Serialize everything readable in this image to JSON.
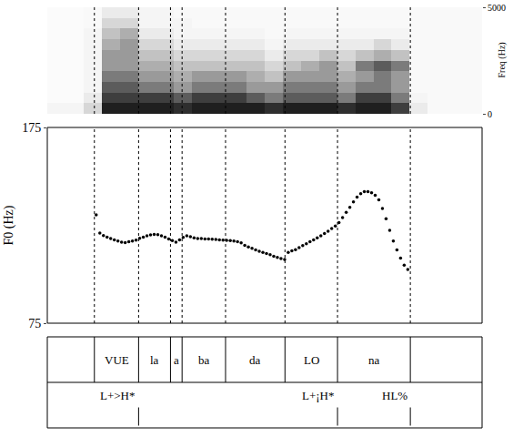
{
  "chart_data": [
    {
      "type": "heatmap",
      "ylabel": "Freq (Hz)",
      "xlim": [
        0,
        1.2
      ],
      "ylim": [
        0,
        5000
      ],
      "yticks": [
        0,
        5000
      ],
      "tick_labels": "y",
      "grid": false,
      "x": [
        0.025,
        0.075,
        0.125,
        0.175,
        0.225,
        0.275,
        0.325,
        0.375,
        0.425,
        0.475,
        0.525,
        0.575,
        0.625,
        0.675,
        0.725,
        0.775,
        0.825,
        0.875,
        0.925,
        0.975,
        1.025,
        1.075,
        1.125,
        1.175
      ],
      "y": [
        250,
        750,
        1250,
        1750,
        2250,
        2750,
        3250,
        3750,
        4250,
        4750
      ],
      "zlim": [
        0,
        1
      ],
      "columns": [
        [
          0.05,
          0.02,
          0.02,
          0.02,
          0.02,
          0.02,
          0.02,
          0.02,
          0.02,
          0.02
        ],
        [
          0.05,
          0.02,
          0.02,
          0.02,
          0.02,
          0.02,
          0.02,
          0.02,
          0.02,
          0.02
        ],
        [
          0.2,
          0.1,
          0.05,
          0.05,
          0.05,
          0.05,
          0.05,
          0.05,
          0.03,
          0.03
        ],
        [
          0.9,
          0.8,
          0.7,
          0.6,
          0.5,
          0.5,
          0.4,
          0.3,
          0.2,
          0.1
        ],
        [
          0.9,
          0.8,
          0.7,
          0.6,
          0.5,
          0.5,
          0.5,
          0.4,
          0.2,
          0.1
        ],
        [
          0.9,
          0.8,
          0.6,
          0.5,
          0.4,
          0.3,
          0.2,
          0.1,
          0.05,
          0.05
        ],
        [
          0.9,
          0.8,
          0.6,
          0.5,
          0.4,
          0.3,
          0.2,
          0.1,
          0.05,
          0.05
        ],
        [
          0.85,
          0.7,
          0.5,
          0.4,
          0.3,
          0.2,
          0.1,
          0.05,
          0.05,
          0.03
        ],
        [
          0.9,
          0.8,
          0.6,
          0.5,
          0.3,
          0.2,
          0.1,
          0.05,
          0.03,
          0.03
        ],
        [
          0.9,
          0.8,
          0.6,
          0.5,
          0.3,
          0.2,
          0.1,
          0.05,
          0.03,
          0.03
        ],
        [
          0.9,
          0.8,
          0.6,
          0.5,
          0.3,
          0.2,
          0.1,
          0.05,
          0.03,
          0.03
        ],
        [
          0.9,
          0.7,
          0.5,
          0.4,
          0.3,
          0.2,
          0.1,
          0.05,
          0.03,
          0.03
        ],
        [
          0.85,
          0.6,
          0.5,
          0.3,
          0.2,
          0.1,
          0.05,
          0.03,
          0.03,
          0.03
        ],
        [
          0.9,
          0.7,
          0.6,
          0.5,
          0.3,
          0.2,
          0.1,
          0.05,
          0.03,
          0.03
        ],
        [
          0.9,
          0.7,
          0.6,
          0.5,
          0.4,
          0.2,
          0.1,
          0.05,
          0.03,
          0.03
        ],
        [
          0.9,
          0.7,
          0.6,
          0.5,
          0.5,
          0.3,
          0.1,
          0.05,
          0.03,
          0.03
        ],
        [
          0.85,
          0.6,
          0.5,
          0.4,
          0.3,
          0.2,
          0.1,
          0.05,
          0.03,
          0.03
        ],
        [
          0.9,
          0.8,
          0.6,
          0.5,
          0.6,
          0.3,
          0.1,
          0.05,
          0.03,
          0.03
        ],
        [
          0.9,
          0.8,
          0.6,
          0.6,
          0.7,
          0.4,
          0.2,
          0.05,
          0.03,
          0.03
        ],
        [
          0.8,
          0.6,
          0.5,
          0.5,
          0.6,
          0.3,
          0.1,
          0.05,
          0.03,
          0.03
        ],
        [
          0.1,
          0.05,
          0.03,
          0.03,
          0.03,
          0.03,
          0.03,
          0.03,
          0.03,
          0.03
        ],
        [
          0.03,
          0.03,
          0.03,
          0.03,
          0.03,
          0.03,
          0.03,
          0.03,
          0.03,
          0.03
        ],
        [
          0.03,
          0.03,
          0.03,
          0.03,
          0.03,
          0.03,
          0.03,
          0.03,
          0.03,
          0.03
        ],
        [
          0.03,
          0.03,
          0.03,
          0.03,
          0.03,
          0.03,
          0.03,
          0.03,
          0.03,
          0.03
        ]
      ]
    },
    {
      "type": "scatter",
      "ylabel": "F0 (Hz)",
      "xlim": [
        0,
        1.2
      ],
      "ylim": [
        75,
        175
      ],
      "yticks": [
        75,
        175
      ],
      "tick_labels": "y",
      "grid": false,
      "marker": "circle",
      "color": "#000000",
      "x": [
        0.135,
        0.145,
        0.155,
        0.165,
        0.175,
        0.185,
        0.195,
        0.205,
        0.215,
        0.225,
        0.235,
        0.245,
        0.255,
        0.265,
        0.275,
        0.285,
        0.295,
        0.305,
        0.315,
        0.325,
        0.335,
        0.345,
        0.355,
        0.365,
        0.375,
        0.385,
        0.395,
        0.405,
        0.415,
        0.425,
        0.435,
        0.445,
        0.455,
        0.465,
        0.475,
        0.485,
        0.495,
        0.505,
        0.515,
        0.525,
        0.535,
        0.545,
        0.555,
        0.565,
        0.575,
        0.585,
        0.595,
        0.605,
        0.615,
        0.625,
        0.635,
        0.645,
        0.655,
        0.665,
        0.675,
        0.685,
        0.695,
        0.705,
        0.715,
        0.725,
        0.735,
        0.745,
        0.755,
        0.765,
        0.775,
        0.785,
        0.795,
        0.805,
        0.815,
        0.825,
        0.835,
        0.845,
        0.855,
        0.865,
        0.875,
        0.885,
        0.895,
        0.905,
        0.915,
        0.925,
        0.935,
        0.945,
        0.955,
        0.965,
        0.975,
        0.985,
        0.995
      ],
      "values": [
        130.3,
        121,
        119.8,
        119,
        118.2,
        117.6,
        117,
        116.4,
        116.2,
        116.6,
        117,
        117.5,
        118.4,
        119,
        119.6,
        120.1,
        120.4,
        120.2,
        119.6,
        119,
        118,
        117.2,
        116.4,
        117.6,
        118.8,
        119.6,
        119.2,
        118.6,
        118.2,
        118.2,
        118,
        118,
        117.9,
        117.8,
        117.6,
        117.4,
        117.3,
        117.2,
        117,
        116.6,
        116,
        114.8,
        114,
        113.2,
        112.4,
        111.8,
        111.2,
        110.6,
        110,
        109.2,
        108.6,
        108,
        107.6,
        111.2,
        112,
        112.6,
        113.6,
        114.6,
        115.6,
        116.6,
        117.6,
        118.6,
        119.6,
        120.8,
        122,
        123.4,
        124.6,
        126.4,
        129,
        131.6,
        134.2,
        137,
        139.4,
        141.2,
        142.2,
        142.2,
        141.6,
        140.4,
        138,
        133.6,
        128.4,
        122.4,
        117,
        112.4,
        108.2,
        104.6,
        102.4
      ]
    }
  ],
  "tiers": {
    "segments": {
      "boundaries": [
        0.13,
        0.252,
        0.34,
        0.372,
        0.492,
        0.656,
        0.801,
        1.002
      ],
      "labels": [
        "VUE",
        "la",
        "a",
        "ba",
        "da",
        "LO",
        "na"
      ]
    },
    "tones": {
      "times": [
        0.252,
        0.801,
        1.002
      ],
      "labels": [
        "L+>H*",
        "L+¡H*",
        "HL%"
      ]
    }
  }
}
